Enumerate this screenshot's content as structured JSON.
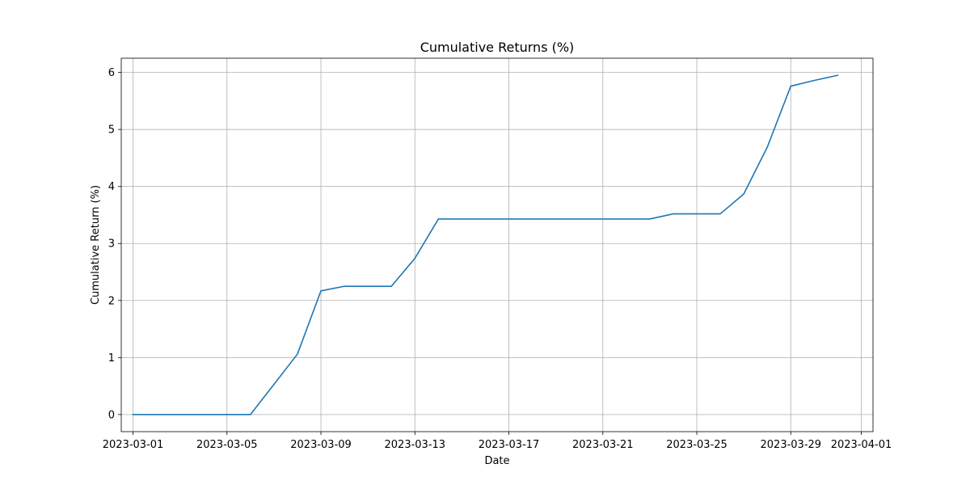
{
  "chart_data": {
    "type": "line",
    "title": "Cumulative Returns (%)",
    "xlabel": "Date",
    "ylabel": "Cumulative Return (%)",
    "grid": true,
    "x_ticks": [
      "2023-03-01",
      "2023-03-05",
      "2023-03-09",
      "2023-03-13",
      "2023-03-17",
      "2023-03-21",
      "2023-03-25",
      "2023-03-29",
      "2023-04-01"
    ],
    "y_ticks": [
      0,
      1,
      2,
      3,
      4,
      5,
      6
    ],
    "xlim": [
      "2023-02-28T12:00:00",
      "2023-04-01T12:00:00"
    ],
    "ylim": [
      -0.3,
      6.25
    ],
    "series_color": "#1f77b4",
    "series": [
      {
        "x": [
          "2023-03-01",
          "2023-03-02",
          "2023-03-03",
          "2023-03-04",
          "2023-03-05",
          "2023-03-06",
          "2023-03-07",
          "2023-03-08",
          "2023-03-09",
          "2023-03-10",
          "2023-03-11",
          "2023-03-12",
          "2023-03-13",
          "2023-03-14",
          "2023-03-15",
          "2023-03-16",
          "2023-03-17",
          "2023-03-18",
          "2023-03-19",
          "2023-03-20",
          "2023-03-21",
          "2023-03-22",
          "2023-03-23",
          "2023-03-24",
          "2023-03-25",
          "2023-03-26",
          "2023-03-27",
          "2023-03-28",
          "2023-03-29",
          "2023-03-30",
          "2023-03-31"
        ],
        "values": [
          0,
          0,
          0,
          0,
          0,
          0,
          0.53,
          1.06,
          2.17,
          2.25,
          2.25,
          2.25,
          2.74,
          3.43,
          3.43,
          3.43,
          3.43,
          3.43,
          3.43,
          3.43,
          3.43,
          3.43,
          3.43,
          3.52,
          3.52,
          3.52,
          3.87,
          4.69,
          5.76,
          5.86,
          5.95
        ]
      }
    ]
  }
}
